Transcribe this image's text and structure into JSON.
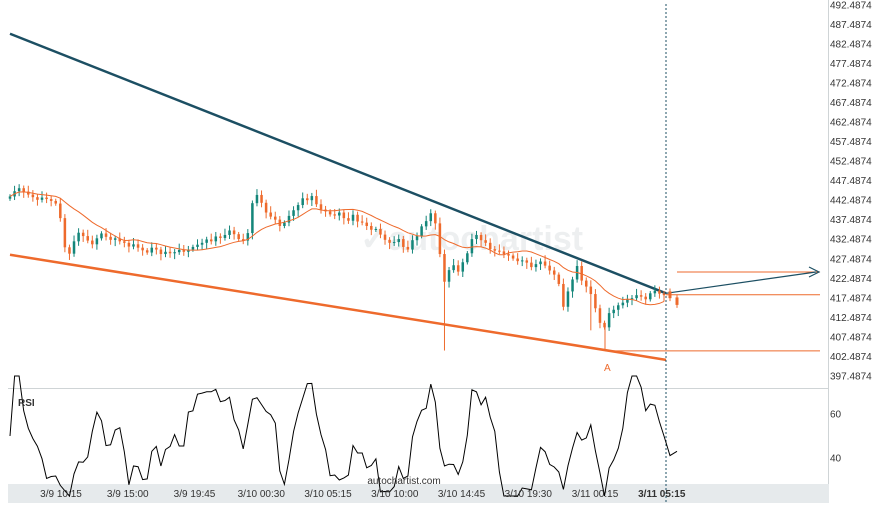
{
  "chart_data": {
    "type": "candlestick",
    "y_ticks": [
      "492.4874",
      "487.4874",
      "482.4874",
      "477.4874",
      "472.4874",
      "467.4874",
      "462.4874",
      "457.4874",
      "452.4874",
      "447.4874",
      "442.4874",
      "437.4874",
      "432.4874",
      "427.4874",
      "422.4874",
      "417.4874",
      "412.4874",
      "407.4874",
      "402.4874",
      "397.4874"
    ],
    "y_range": [
      394.9874,
      494.9874
    ],
    "x_ticks": [
      "3/9 10:15",
      "3/9 15:00",
      "3/9 19:45",
      "3/10 00:30",
      "3/10 05:15",
      "3/10 10:00",
      "3/10 14:45",
      "3/10 19:30",
      "3/11 00:15",
      "3/11 05:15"
    ],
    "x_ticks_bold_index": 9,
    "rsi_label": "RSI",
    "rsi_ticks": [
      "60",
      "40"
    ],
    "rsi_range": [
      28,
      72
    ],
    "point_label": "A",
    "watermark": "autochartist.com",
    "colors": {
      "up": "#14867a",
      "down": "#ee6a2c",
      "resistance": "#1c4f63",
      "support": "#ee6a2c",
      "ma": "#ee6a2c",
      "forecast": "#1c4f63",
      "levels": "#ee6a2c",
      "rsi": "#000000"
    },
    "close": [
      443.8,
      445.2,
      446.0,
      445.1,
      444.3,
      443.6,
      442.9,
      443.5,
      443.1,
      442.6,
      441.9,
      438.0,
      430.2,
      428.5,
      431.8,
      434.1,
      433.2,
      432.0,
      431.0,
      432.6,
      433.9,
      433.0,
      432.2,
      432.6,
      431.8,
      431.4,
      430.4,
      431.0,
      430.1,
      429.4,
      428.8,
      430.1,
      429.6,
      428.4,
      429.0,
      428.6,
      428.9,
      429.5,
      429.0,
      429.6,
      430.3,
      430.9,
      431.4,
      432.3,
      431.8,
      433.1,
      432.7,
      433.5,
      434.7,
      433.7,
      432.4,
      432.0,
      434.0,
      442.0,
      444.2,
      442.1,
      439.5,
      438.4,
      437.6,
      435.9,
      436.8,
      438.6,
      440.1,
      441.5,
      443.3,
      442.8,
      443.9,
      441.7,
      440.3,
      439.8,
      439.0,
      438.7,
      439.5,
      438.0,
      437.3,
      438.9,
      437.1,
      436.8,
      435.9,
      434.9,
      435.1,
      433.6,
      432.2,
      431.4,
      431.6,
      432.4,
      430.3,
      429.6,
      432.1,
      433.2,
      435.8,
      437.2,
      439.3,
      436.6,
      428.4,
      421.0,
      424.1,
      425.4,
      423.7,
      426.2,
      428.6,
      432.4,
      433.5,
      432.1,
      431.4,
      429.7,
      429.3,
      429.1,
      428.4,
      428.0,
      427.2,
      426.5,
      426.7,
      426.1,
      424.9,
      425.7,
      426.4,
      425.3,
      424.0,
      422.9,
      420.4,
      414.3,
      418.4,
      421.6,
      425.2,
      421.3,
      419.7,
      417.7,
      413.9,
      410.0,
      408.8,
      412.6,
      413.5,
      414.7,
      415.4,
      416.3,
      416.6,
      417.4,
      417.0,
      416.3,
      417.9,
      418.6,
      417.8,
      417.4
    ]
  }
}
